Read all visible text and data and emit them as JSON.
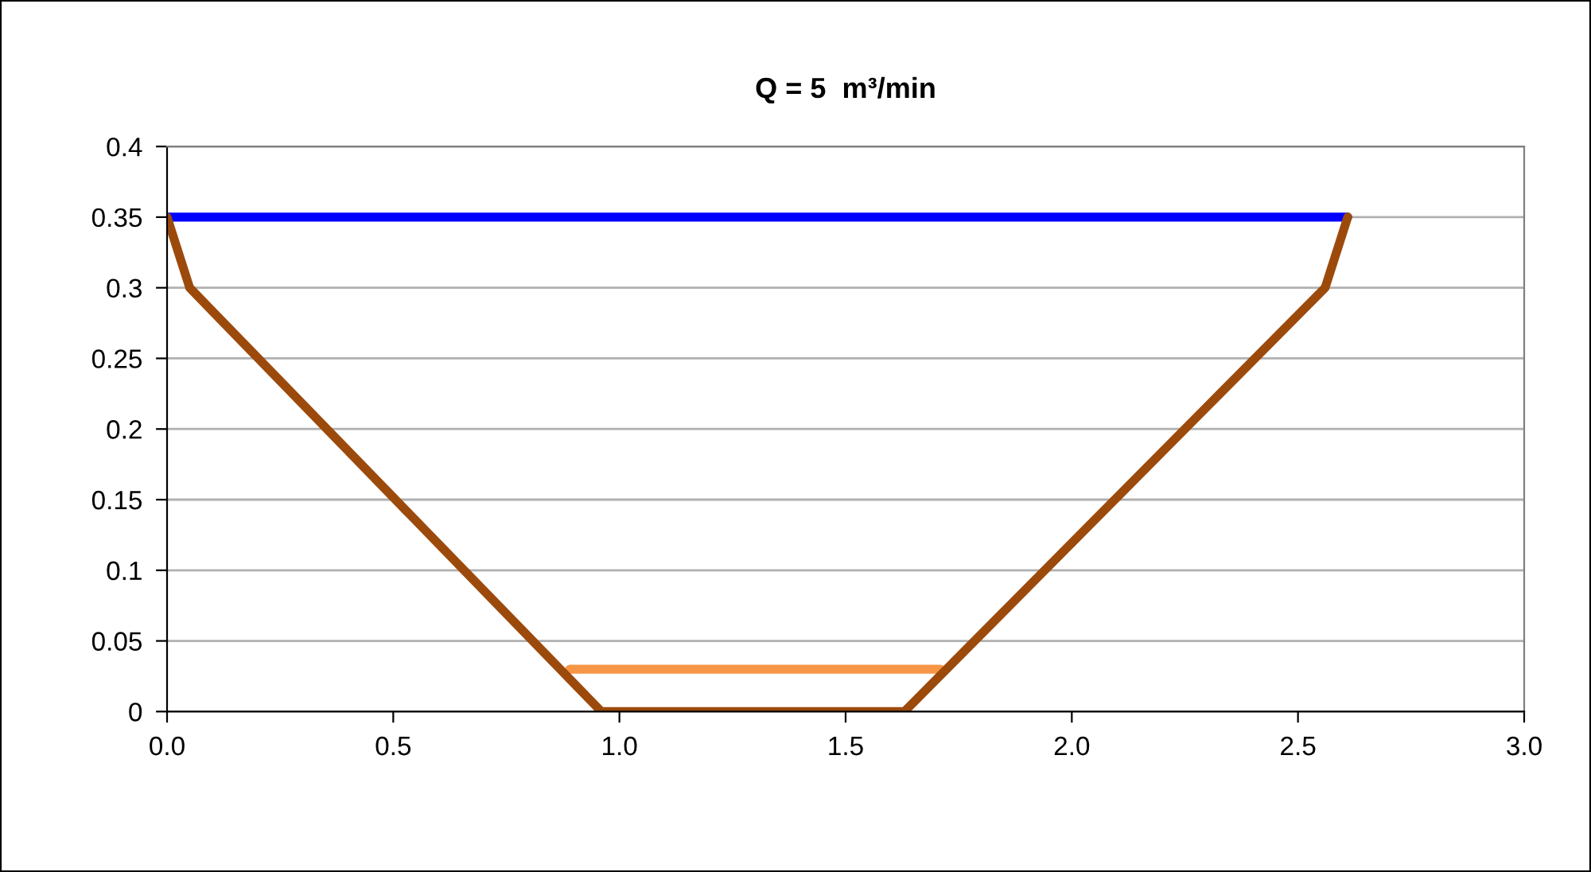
{
  "chart_data": {
    "type": "line",
    "title": "Q = 5  m³/min",
    "series": [
      {
        "color": "#0000ff",
        "x": [
          0,
          2.61
        ],
        "values": [
          0.35,
          0.35
        ]
      },
      {
        "color": "#f79646",
        "x": [
          0.89,
          1.71
        ],
        "values": [
          0.03,
          0.03
        ]
      },
      {
        "color": "#9c4a0c",
        "x": [
          0,
          0.05,
          0.96,
          1.63,
          2.56,
          2.61
        ],
        "values": [
          0.35,
          0.3,
          0,
          0,
          0.3,
          0.35
        ]
      }
    ],
    "xlim": [
      0,
      3
    ],
    "xticks": [
      {
        "value": 0,
        "label": "0.0"
      },
      {
        "value": 0.5,
        "label": "0.5"
      },
      {
        "value": 1,
        "label": "1.0"
      },
      {
        "value": 1.5,
        "label": "1.5"
      },
      {
        "value": 2,
        "label": "2.0"
      },
      {
        "value": 2.5,
        "label": "2.5"
      },
      {
        "value": 3,
        "label": "3.0"
      }
    ],
    "ylim": [
      0,
      0.4
    ],
    "yticks": [
      0,
      0.05,
      0.1,
      0.15,
      0.2,
      0.25,
      0.3,
      0.35,
      0.4
    ],
    "grid": "y",
    "marker": "none",
    "line_style": "solid"
  }
}
